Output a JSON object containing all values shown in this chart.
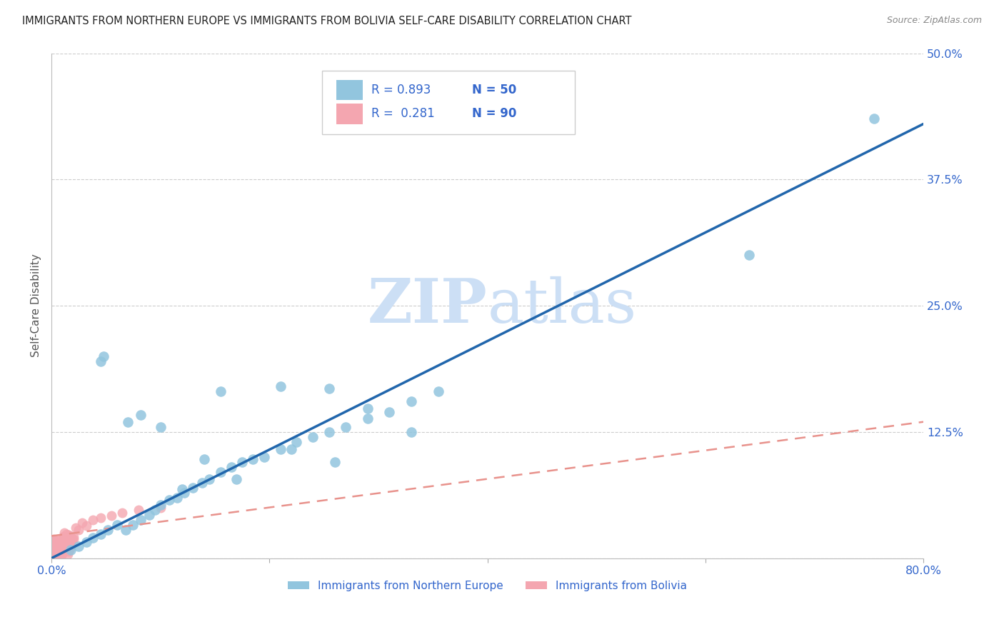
{
  "title": "IMMIGRANTS FROM NORTHERN EUROPE VS IMMIGRANTS FROM BOLIVIA SELF-CARE DISABILITY CORRELATION CHART",
  "source": "Source: ZipAtlas.com",
  "ylabel": "Self-Care Disability",
  "xlim": [
    0.0,
    0.8
  ],
  "ylim": [
    0.0,
    0.5
  ],
  "ytick_vals": [
    0.0,
    0.125,
    0.25,
    0.375,
    0.5
  ],
  "ytick_labels": [
    "",
    "12.5%",
    "25.0%",
    "37.5%",
    "50.0%"
  ],
  "xtick_vals": [
    0.0,
    0.2,
    0.4,
    0.6,
    0.8
  ],
  "xtick_labels": [
    "0.0%",
    "",
    "",
    "",
    "80.0%"
  ],
  "blue_scatter_color": "#92c5de",
  "blue_line_color": "#2166ac",
  "pink_scatter_color": "#f4a6b0",
  "pink_line_color": "#e8928c",
  "legend_R1": "0.893",
  "legend_N1": "50",
  "legend_R2": "0.281",
  "legend_N2": "90",
  "legend_label1": "Immigrants from Northern Europe",
  "legend_label2": "Immigrants from Bolivia",
  "text_color_blue": "#3366cc",
  "watermark_zip_color": "#ccdff5",
  "watermark_atlas_color": "#ccdff5",
  "blue_line_x0": 0.0,
  "blue_line_y0": 0.0,
  "blue_line_x1": 0.8,
  "blue_line_y1": 0.43,
  "pink_line_x0": 0.0,
  "pink_line_y0": 0.022,
  "pink_line_x1": 0.8,
  "pink_line_y1": 0.135,
  "blue_scatter_x": [
    0.018,
    0.025,
    0.032,
    0.038,
    0.045,
    0.052,
    0.06,
    0.068,
    0.075,
    0.082,
    0.09,
    0.095,
    0.1,
    0.108,
    0.115,
    0.122,
    0.13,
    0.138,
    0.145,
    0.155,
    0.165,
    0.175,
    0.185,
    0.195,
    0.21,
    0.225,
    0.24,
    0.255,
    0.27,
    0.29,
    0.31,
    0.33,
    0.355,
    0.045,
    0.082,
    0.155,
    0.21,
    0.255,
    0.29,
    0.33,
    0.048,
    0.17,
    0.22,
    0.26,
    0.07,
    0.12,
    0.1,
    0.14,
    0.64,
    0.755
  ],
  "blue_scatter_y": [
    0.008,
    0.012,
    0.016,
    0.02,
    0.024,
    0.028,
    0.033,
    0.028,
    0.033,
    0.038,
    0.043,
    0.048,
    0.053,
    0.058,
    0.06,
    0.065,
    0.07,
    0.075,
    0.078,
    0.085,
    0.09,
    0.095,
    0.098,
    0.1,
    0.108,
    0.115,
    0.12,
    0.125,
    0.13,
    0.138,
    0.145,
    0.155,
    0.165,
    0.195,
    0.142,
    0.165,
    0.17,
    0.168,
    0.148,
    0.125,
    0.2,
    0.078,
    0.108,
    0.095,
    0.135,
    0.068,
    0.13,
    0.098,
    0.3,
    0.435
  ],
  "pink_scatter_x": [
    0.001,
    0.002,
    0.003,
    0.004,
    0.005,
    0.006,
    0.007,
    0.008,
    0.009,
    0.01,
    0.001,
    0.002,
    0.003,
    0.004,
    0.005,
    0.006,
    0.007,
    0.008,
    0.009,
    0.01,
    0.001,
    0.002,
    0.003,
    0.004,
    0.005,
    0.006,
    0.007,
    0.008,
    0.009,
    0.01,
    0.001,
    0.002,
    0.003,
    0.004,
    0.005,
    0.006,
    0.007,
    0.008,
    0.009,
    0.01,
    0.001,
    0.002,
    0.003,
    0.004,
    0.005,
    0.006,
    0.007,
    0.008,
    0.009,
    0.01,
    0.001,
    0.002,
    0.003,
    0.004,
    0.005,
    0.006,
    0.007,
    0.008,
    0.009,
    0.01,
    0.011,
    0.012,
    0.013,
    0.014,
    0.015,
    0.016,
    0.017,
    0.018,
    0.019,
    0.02,
    0.011,
    0.012,
    0.013,
    0.014,
    0.015,
    0.016,
    0.017,
    0.018,
    0.019,
    0.02,
    0.022,
    0.025,
    0.028,
    0.032,
    0.038,
    0.045,
    0.055,
    0.065,
    0.08,
    0.1
  ],
  "pink_scatter_y": [
    0.002,
    0.005,
    0.008,
    0.011,
    0.014,
    0.017,
    0.003,
    0.006,
    0.009,
    0.012,
    0.015,
    0.018,
    0.004,
    0.007,
    0.01,
    0.013,
    0.016,
    0.002,
    0.005,
    0.008,
    0.011,
    0.014,
    0.017,
    0.003,
    0.006,
    0.009,
    0.012,
    0.015,
    0.018,
    0.004,
    0.007,
    0.01,
    0.013,
    0.016,
    0.002,
    0.005,
    0.008,
    0.011,
    0.014,
    0.017,
    0.003,
    0.006,
    0.009,
    0.012,
    0.015,
    0.018,
    0.004,
    0.007,
    0.01,
    0.013,
    0.016,
    0.019,
    0.002,
    0.005,
    0.008,
    0.011,
    0.014,
    0.017,
    0.003,
    0.006,
    0.009,
    0.012,
    0.015,
    0.018,
    0.004,
    0.007,
    0.01,
    0.013,
    0.016,
    0.019,
    0.022,
    0.025,
    0.021,
    0.024,
    0.02,
    0.023,
    0.019,
    0.022,
    0.018,
    0.021,
    0.03,
    0.028,
    0.035,
    0.032,
    0.038,
    0.04,
    0.042,
    0.045,
    0.048,
    0.05
  ]
}
